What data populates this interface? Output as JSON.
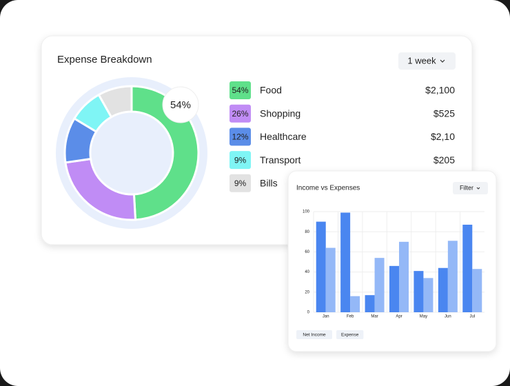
{
  "chart_data": [
    {
      "type": "pie",
      "title": "Expense Breakdown",
      "dropdown": "1 week",
      "categories": [
        "Food",
        "Shopping",
        "Healthcare",
        "Transport",
        "Bills"
      ],
      "values": [
        54,
        26,
        12,
        9,
        9
      ],
      "value_labels": [
        "54%",
        "26%",
        "12%",
        "9%",
        "9%"
      ],
      "amounts": [
        "$2,100",
        "$525",
        "$2,10",
        "$205",
        null
      ],
      "colors": [
        "#5fe08a",
        "#c08cf5",
        "#5b8de8",
        "#7ff5f5",
        "#e2e2e2"
      ]
    },
    {
      "type": "bar",
      "title": "Income vs Expenses",
      "filter": "Filter",
      "categories": [
        "Jan",
        "Feb",
        "Mar",
        "Apr",
        "May",
        "Jun",
        "Jul"
      ],
      "series": [
        {
          "name": "Net Income",
          "color": "#4a86f0",
          "values": [
            90,
            99,
            17,
            46,
            41,
            44,
            87
          ]
        },
        {
          "name": "Expense",
          "color": "#94b8f7",
          "values": [
            64,
            16,
            54,
            70,
            34,
            71,
            43
          ]
        }
      ],
      "ylim": [
        0,
        100
      ],
      "yticks": [
        0,
        20,
        40,
        60,
        80,
        100
      ],
      "grid": true
    }
  ]
}
